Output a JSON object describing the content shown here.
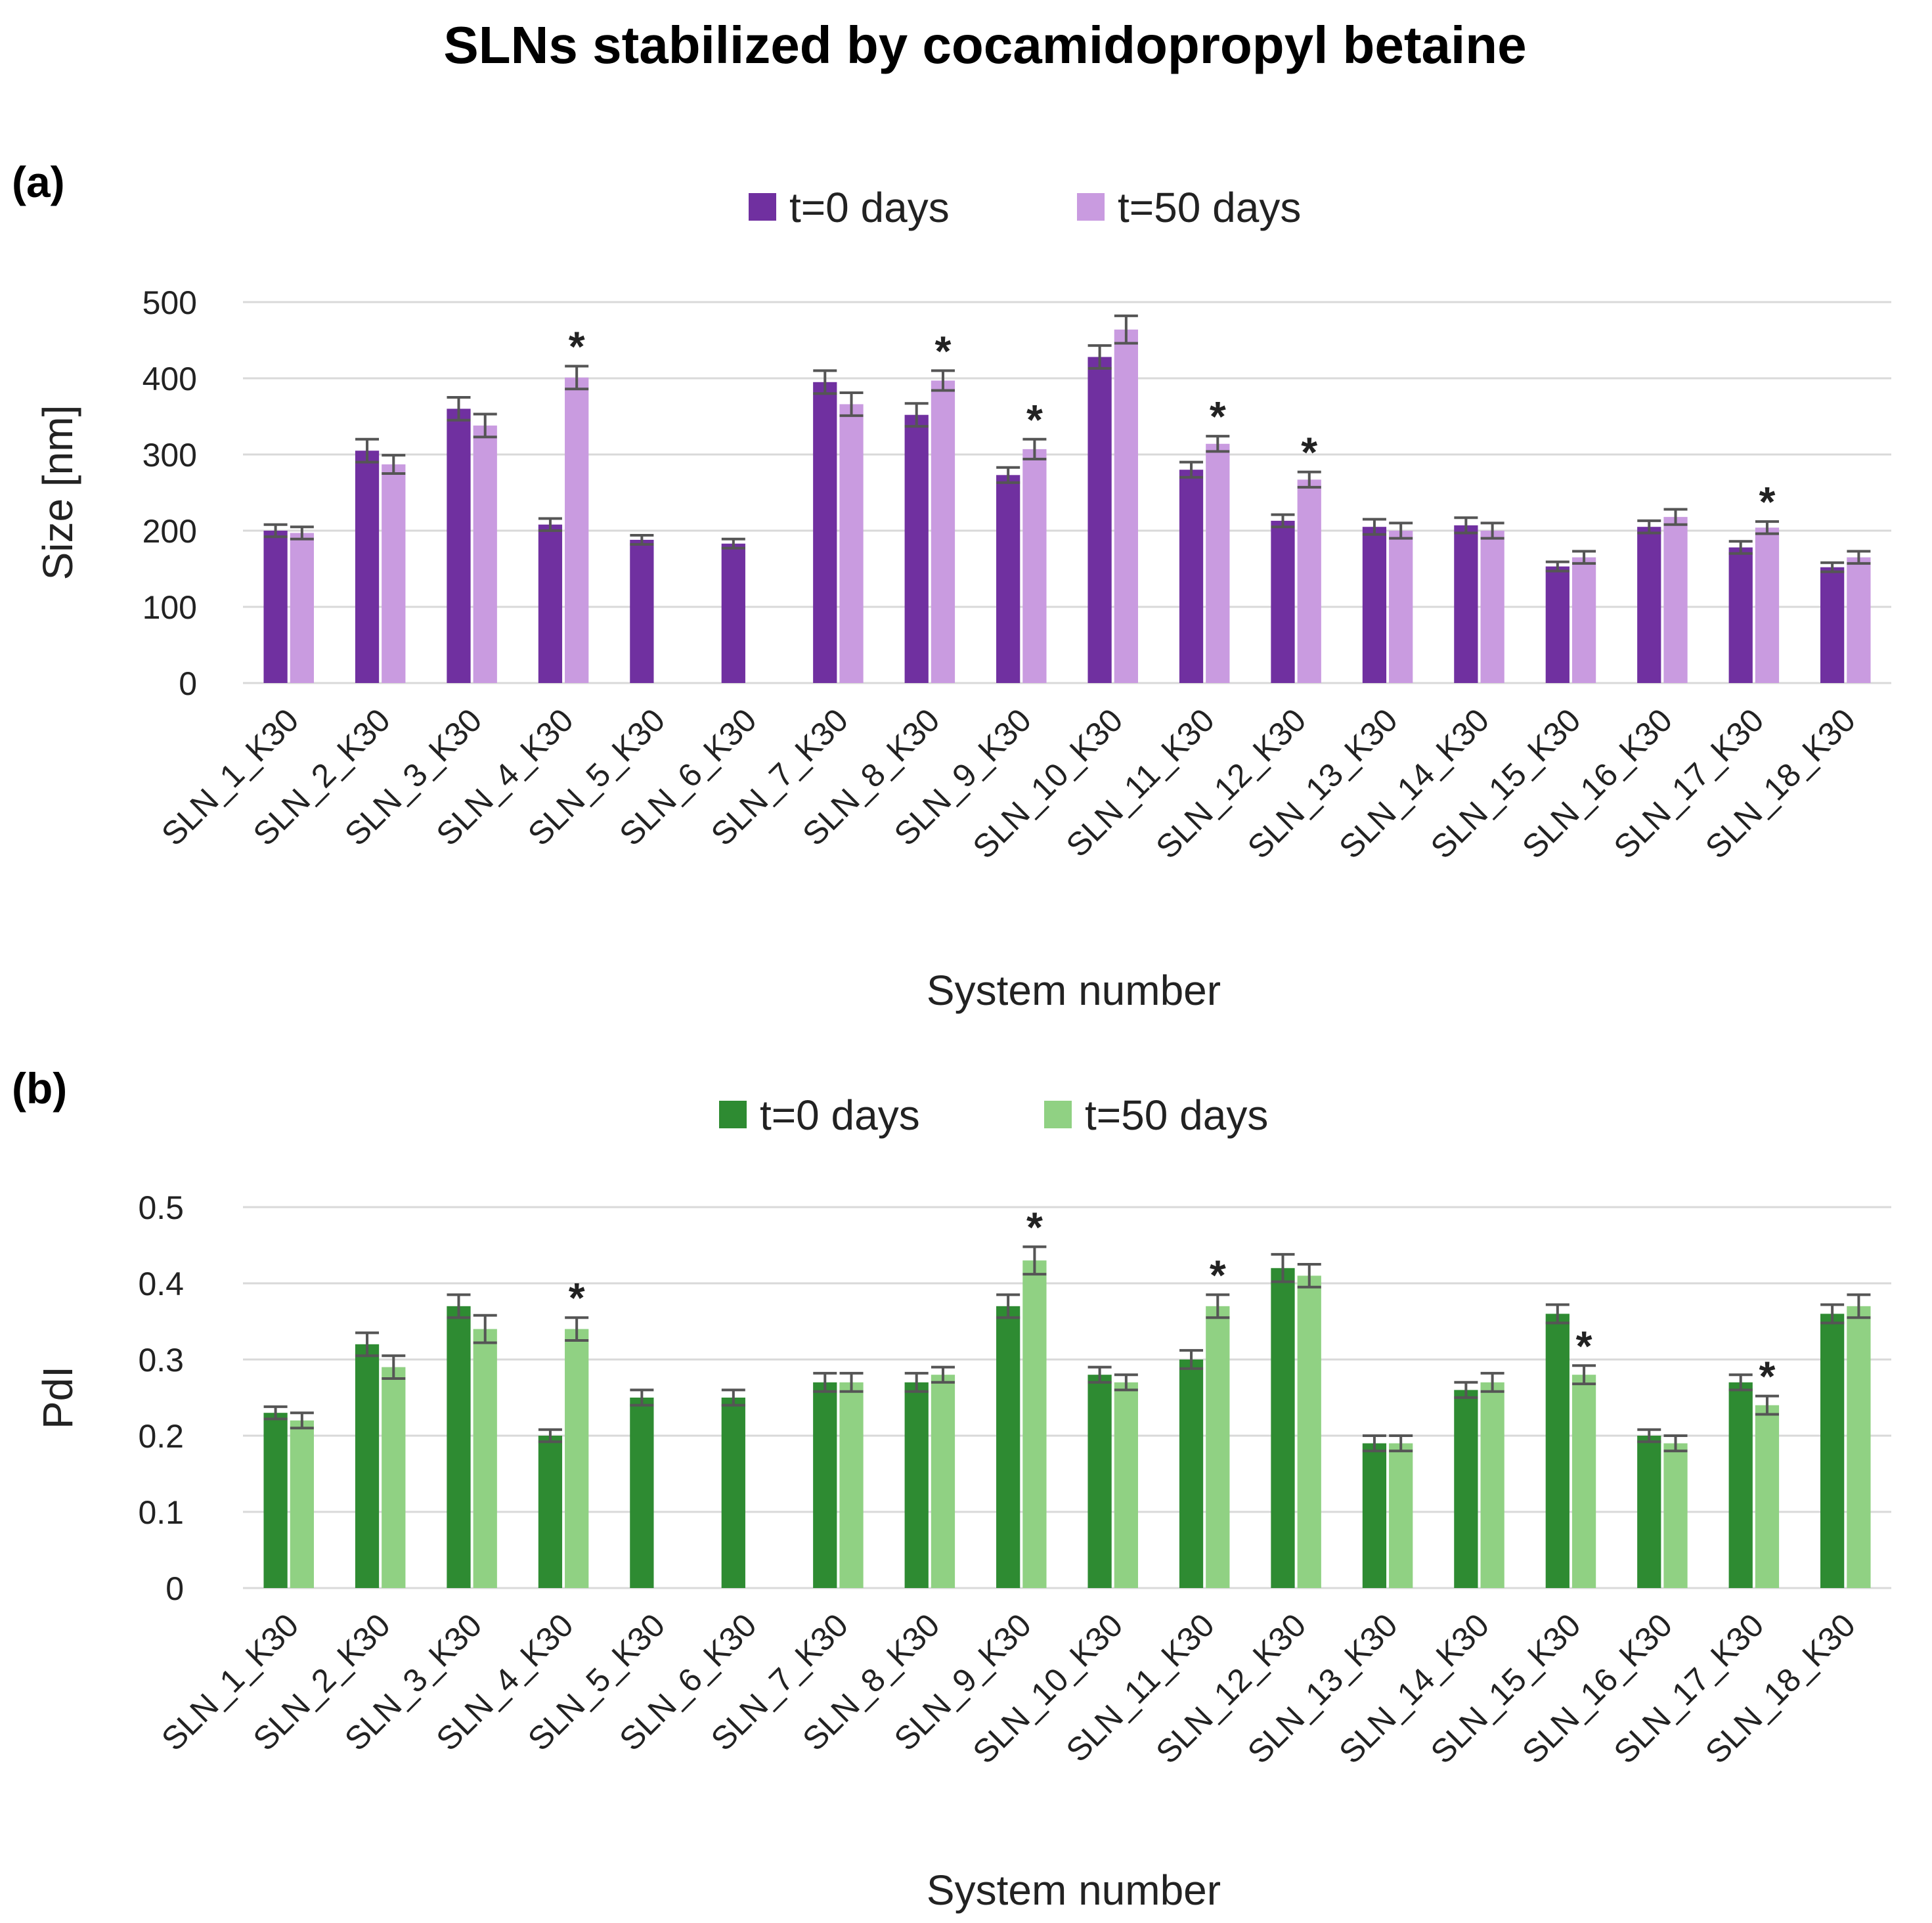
{
  "title": "SLNs stabilized by cocamidopropyl betaine",
  "colors": {
    "purple_t0": "#7030a0",
    "purple_t50": "#c99be0",
    "green_t0": "#2e8b32",
    "green_t50": "#90d183"
  },
  "chart_data": [
    {
      "panel": "(a)",
      "type": "bar",
      "ylabel": "Size  [nm]",
      "xlabel": "System number",
      "ylim": [
        0,
        500
      ],
      "yticks": [
        "0",
        "100",
        "200",
        "300",
        "400",
        "500"
      ],
      "ytick_values": [
        0,
        100,
        200,
        300,
        400,
        500
      ],
      "grid": true,
      "legend": "top-center",
      "categories": [
        "SLN_1_K30",
        "SLN_2_K30",
        "SLN_3_K30",
        "SLN_4_K30",
        "SLN_5_K30",
        "SLN_6_K30",
        "SLN_7_K30",
        "SLN_8_K30",
        "SLN_9_K30",
        "SLN_10_K30",
        "SLN_11_K30",
        "SLN_12_K30",
        "SLN_13_K30",
        "SLN_14_K30",
        "SLN_15_K30",
        "SLN_16_K30",
        "SLN_17_K30",
        "SLN_18_K30"
      ],
      "series": [
        {
          "name": "t=0 days",
          "color": "#7030a0",
          "values": [
            200,
            305,
            360,
            208,
            188,
            183,
            395,
            352,
            273,
            428,
            280,
            213,
            205,
            207,
            153,
            205,
            178,
            152
          ],
          "errors": [
            8,
            15,
            15,
            8,
            6,
            6,
            15,
            15,
            10,
            15,
            10,
            8,
            10,
            10,
            6,
            8,
            8,
            6
          ]
        },
        {
          "name": "t=50 days",
          "color": "#c99be0",
          "values": [
            197,
            287,
            338,
            401,
            null,
            null,
            366,
            397,
            307,
            464,
            314,
            267,
            200,
            200,
            165,
            218,
            204,
            165
          ],
          "errors": [
            8,
            12,
            15,
            15,
            null,
            null,
            15,
            13,
            13,
            18,
            10,
            10,
            10,
            10,
            8,
            10,
            8,
            8
          ],
          "significant": [
            false,
            false,
            false,
            true,
            false,
            false,
            false,
            true,
            true,
            false,
            true,
            true,
            false,
            false,
            false,
            false,
            true,
            false
          ]
        }
      ]
    },
    {
      "panel": "(b)",
      "type": "bar",
      "ylabel": "PdI",
      "xlabel": "System number",
      "ylim": [
        0,
        0.5
      ],
      "yticks": [
        "0",
        "0.1",
        "0.2",
        "0.3",
        "0.4",
        "0.5"
      ],
      "ytick_values": [
        0,
        0.1,
        0.2,
        0.3,
        0.4,
        0.5
      ],
      "grid": true,
      "legend": "top-center",
      "categories": [
        "SLN_1_K30",
        "SLN_2_K30",
        "SLN_3_K30",
        "SLN_4_K30",
        "SLN_5_K30",
        "SLN_6_K30",
        "SLN_7_K30",
        "SLN_8_K30",
        "SLN_9_K30",
        "SLN_10_K30",
        "SLN_11_K30",
        "SLN_12_K30",
        "SLN_13_K30",
        "SLN_14_K30",
        "SLN_15_K30",
        "SLN_16_K30",
        "SLN_17_K30",
        "SLN_18_K30"
      ],
      "series": [
        {
          "name": "t=0 days",
          "color": "#2e8b32",
          "values": [
            0.23,
            0.32,
            0.37,
            0.2,
            0.25,
            0.25,
            0.27,
            0.27,
            0.37,
            0.28,
            0.3,
            0.42,
            0.19,
            0.26,
            0.36,
            0.2,
            0.27,
            0.36
          ],
          "errors": [
            0.008,
            0.015,
            0.015,
            0.008,
            0.01,
            0.01,
            0.012,
            0.012,
            0.015,
            0.01,
            0.012,
            0.018,
            0.01,
            0.01,
            0.012,
            0.008,
            0.01,
            0.012
          ]
        },
        {
          "name": "t=50 days",
          "color": "#90d183",
          "values": [
            0.22,
            0.29,
            0.34,
            0.34,
            null,
            null,
            0.27,
            0.28,
            0.43,
            0.27,
            0.37,
            0.41,
            0.19,
            0.27,
            0.28,
            0.19,
            0.24,
            0.37
          ],
          "errors": [
            0.01,
            0.015,
            0.018,
            0.015,
            null,
            null,
            0.012,
            0.01,
            0.018,
            0.01,
            0.015,
            0.015,
            0.01,
            0.012,
            0.012,
            0.01,
            0.012,
            0.015
          ],
          "significant": [
            false,
            false,
            false,
            true,
            false,
            false,
            false,
            false,
            true,
            false,
            true,
            false,
            false,
            false,
            true,
            false,
            true,
            false
          ]
        }
      ]
    }
  ]
}
